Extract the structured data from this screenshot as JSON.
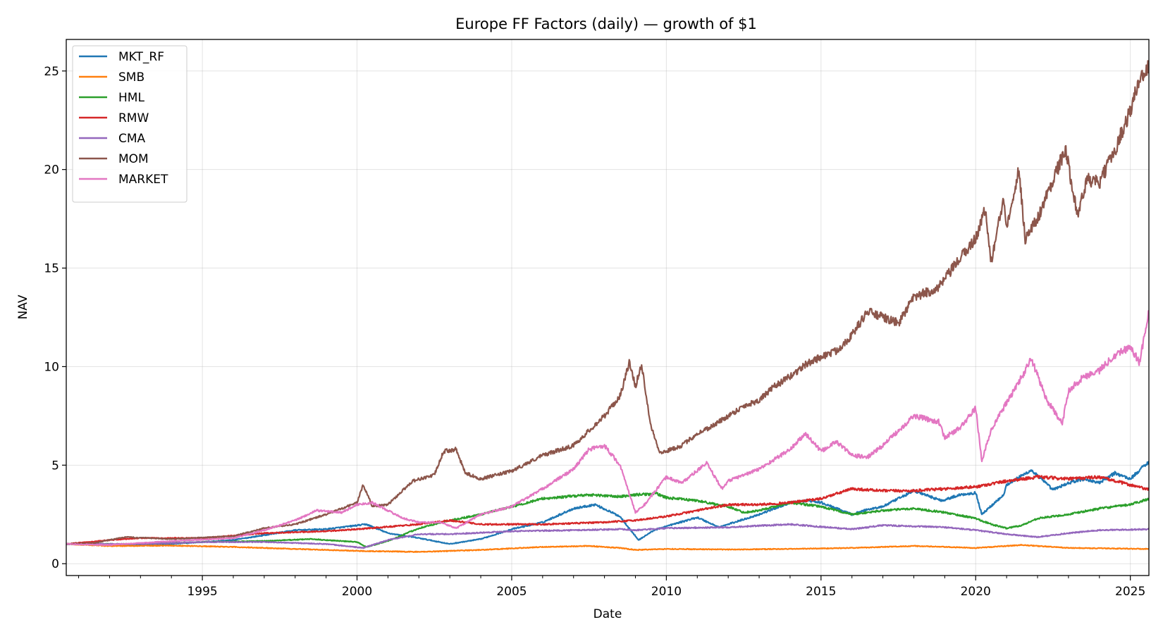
{
  "chart_data": {
    "type": "line",
    "title": "Europe FF Factors (daily) — growth of $1",
    "xlabel": "Date",
    "ylabel": "NAV",
    "xlim": [
      1990.6,
      2025.6
    ],
    "ylim": [
      -0.6,
      26.6
    ],
    "x_ticks": [
      "1995",
      "2000",
      "2005",
      "2010",
      "2015",
      "2020",
      "2025"
    ],
    "y_ticks": [
      "0",
      "5",
      "10",
      "15",
      "20",
      "25"
    ],
    "grid": true,
    "legend_position": "top-left",
    "series": [
      {
        "name": "MKT_RF",
        "color": "#1f77b4",
        "points": [
          [
            1990.6,
            1.0
          ],
          [
            1992,
            0.95
          ],
          [
            1994,
            1.0
          ],
          [
            1996,
            1.2
          ],
          [
            1998,
            1.7
          ],
          [
            1999,
            1.75
          ],
          [
            2000.3,
            2.0
          ],
          [
            2001,
            1.55
          ],
          [
            2002,
            1.3
          ],
          [
            2003,
            1.0
          ],
          [
            2004,
            1.25
          ],
          [
            2005,
            1.75
          ],
          [
            2006,
            2.1
          ],
          [
            2007,
            2.8
          ],
          [
            2007.7,
            3.0
          ],
          [
            2008.5,
            2.4
          ],
          [
            2009.1,
            1.2
          ],
          [
            2009.6,
            1.7
          ],
          [
            2010,
            1.9
          ],
          [
            2011,
            2.35
          ],
          [
            2011.7,
            1.85
          ],
          [
            2012,
            2.0
          ],
          [
            2013,
            2.5
          ],
          [
            2014,
            3.1
          ],
          [
            2014.6,
            3.2
          ],
          [
            2015,
            3.1
          ],
          [
            2015.5,
            2.8
          ],
          [
            2016,
            2.5
          ],
          [
            2016.5,
            2.75
          ],
          [
            2017,
            2.9
          ],
          [
            2018,
            3.7
          ],
          [
            2018.9,
            3.2
          ],
          [
            2019.5,
            3.5
          ],
          [
            2020,
            3.6
          ],
          [
            2020.2,
            2.5
          ],
          [
            2020.9,
            3.5
          ],
          [
            2021,
            4.0
          ],
          [
            2021.8,
            4.75
          ],
          [
            2022.5,
            3.75
          ],
          [
            2023,
            4.1
          ],
          [
            2023.5,
            4.3
          ],
          [
            2024,
            4.1
          ],
          [
            2024.5,
            4.6
          ],
          [
            2025,
            4.3
          ],
          [
            2025.6,
            5.2
          ]
        ]
      },
      {
        "name": "SMB",
        "color": "#ff7f0e",
        "points": [
          [
            1990.6,
            1.0
          ],
          [
            1992,
            0.9
          ],
          [
            1994,
            0.92
          ],
          [
            1996,
            0.85
          ],
          [
            1998,
            0.75
          ],
          [
            2000,
            0.65
          ],
          [
            2002,
            0.6
          ],
          [
            2004,
            0.7
          ],
          [
            2006,
            0.85
          ],
          [
            2007.5,
            0.9
          ],
          [
            2008.5,
            0.8
          ],
          [
            2009,
            0.7
          ],
          [
            2010,
            0.75
          ],
          [
            2012,
            0.72
          ],
          [
            2014,
            0.75
          ],
          [
            2016,
            0.8
          ],
          [
            2018,
            0.9
          ],
          [
            2020,
            0.8
          ],
          [
            2021.5,
            0.95
          ],
          [
            2023,
            0.8
          ],
          [
            2025.6,
            0.75
          ]
        ]
      },
      {
        "name": "HML",
        "color": "#2ca02c",
        "points": [
          [
            1990.6,
            1.0
          ],
          [
            1993,
            1.0
          ],
          [
            1995,
            1.1
          ],
          [
            1997,
            1.15
          ],
          [
            1998.5,
            1.25
          ],
          [
            2000,
            1.1
          ],
          [
            2000.3,
            0.85
          ],
          [
            2001,
            1.15
          ],
          [
            2002,
            1.8
          ],
          [
            2003,
            2.2
          ],
          [
            2004,
            2.5
          ],
          [
            2005,
            2.9
          ],
          [
            2006,
            3.3
          ],
          [
            2007.5,
            3.5
          ],
          [
            2008.5,
            3.4
          ],
          [
            2009,
            3.5
          ],
          [
            2009.7,
            3.55
          ],
          [
            2010,
            3.35
          ],
          [
            2011,
            3.2
          ],
          [
            2012,
            2.9
          ],
          [
            2012.5,
            2.6
          ],
          [
            2013,
            2.7
          ],
          [
            2014,
            3.1
          ],
          [
            2015,
            2.9
          ],
          [
            2016,
            2.5
          ],
          [
            2017,
            2.7
          ],
          [
            2018,
            2.8
          ],
          [
            2019,
            2.6
          ],
          [
            2020,
            2.3
          ],
          [
            2020.5,
            2.0
          ],
          [
            2021,
            1.8
          ],
          [
            2021.5,
            1.95
          ],
          [
            2022,
            2.3
          ],
          [
            2023,
            2.5
          ],
          [
            2024,
            2.8
          ],
          [
            2025,
            3.0
          ],
          [
            2025.6,
            3.3
          ]
        ]
      },
      {
        "name": "RMW",
        "color": "#d62728",
        "points": [
          [
            1990.6,
            1.0
          ],
          [
            1992,
            1.2
          ],
          [
            1993,
            1.3
          ],
          [
            1995,
            1.3
          ],
          [
            1997,
            1.55
          ],
          [
            1999,
            1.65
          ],
          [
            2000,
            1.75
          ],
          [
            2002,
            2.0
          ],
          [
            2003,
            2.2
          ],
          [
            2004,
            2.0
          ],
          [
            2006,
            2.0
          ],
          [
            2008,
            2.1
          ],
          [
            2009,
            2.2
          ],
          [
            2010,
            2.4
          ],
          [
            2011,
            2.7
          ],
          [
            2012,
            3.0
          ],
          [
            2013,
            3.0
          ],
          [
            2014,
            3.1
          ],
          [
            2015,
            3.3
          ],
          [
            2016,
            3.8
          ],
          [
            2017,
            3.7
          ],
          [
            2018,
            3.7
          ],
          [
            2019,
            3.8
          ],
          [
            2020,
            3.9
          ],
          [
            2021,
            4.2
          ],
          [
            2022,
            4.4
          ],
          [
            2023,
            4.3
          ],
          [
            2024,
            4.4
          ],
          [
            2025,
            4.0
          ],
          [
            2025.6,
            3.75
          ]
        ]
      },
      {
        "name": "CMA",
        "color": "#9467bd",
        "points": [
          [
            1990.6,
            1.0
          ],
          [
            1993,
            1.0
          ],
          [
            1995,
            1.1
          ],
          [
            1997,
            1.1
          ],
          [
            1999,
            1.0
          ],
          [
            2000.2,
            0.8
          ],
          [
            2001,
            1.2
          ],
          [
            2002,
            1.5
          ],
          [
            2003,
            1.5
          ],
          [
            2005,
            1.65
          ],
          [
            2007,
            1.7
          ],
          [
            2008.5,
            1.75
          ],
          [
            2009,
            1.7
          ],
          [
            2010,
            1.8
          ],
          [
            2012,
            1.85
          ],
          [
            2014,
            2.0
          ],
          [
            2016,
            1.75
          ],
          [
            2017,
            1.95
          ],
          [
            2019,
            1.85
          ],
          [
            2020,
            1.7
          ],
          [
            2021,
            1.5
          ],
          [
            2022,
            1.35
          ],
          [
            2023,
            1.55
          ],
          [
            2024,
            1.7
          ],
          [
            2025.6,
            1.75
          ]
        ]
      },
      {
        "name": "MOM",
        "color": "#8c564b",
        "points": [
          [
            1990.6,
            1.0
          ],
          [
            1991.5,
            1.05
          ],
          [
            1992.5,
            1.35
          ],
          [
            1994,
            1.25
          ],
          [
            1996,
            1.4
          ],
          [
            1997,
            1.8
          ],
          [
            1998,
            2.0
          ],
          [
            1999,
            2.5
          ],
          [
            2000,
            3.1
          ],
          [
            2000.2,
            4.0
          ],
          [
            2000.5,
            2.9
          ],
          [
            2001,
            3.0
          ],
          [
            2001.8,
            4.2
          ],
          [
            2002.5,
            4.5
          ],
          [
            2002.8,
            5.7
          ],
          [
            2003.2,
            5.8
          ],
          [
            2003.5,
            4.6
          ],
          [
            2004,
            4.3
          ],
          [
            2005,
            4.7
          ],
          [
            2006,
            5.5
          ],
          [
            2007,
            6.0
          ],
          [
            2008,
            7.5
          ],
          [
            2008.5,
            8.5
          ],
          [
            2008.8,
            10.2
          ],
          [
            2009,
            9.0
          ],
          [
            2009.2,
            10.1
          ],
          [
            2009.5,
            7.0
          ],
          [
            2009.8,
            5.6
          ],
          [
            2010.5,
            6.0
          ],
          [
            2011,
            6.6
          ],
          [
            2011.5,
            7.0
          ],
          [
            2012,
            7.5
          ],
          [
            2012.5,
            8.0
          ],
          [
            2013,
            8.3
          ],
          [
            2013.5,
            9.0
          ],
          [
            2014,
            9.5
          ],
          [
            2014.5,
            10.1
          ],
          [
            2015,
            10.5
          ],
          [
            2015.5,
            10.8
          ],
          [
            2016,
            11.6
          ],
          [
            2016.5,
            12.8
          ],
          [
            2017,
            12.5
          ],
          [
            2017.5,
            12.2
          ],
          [
            2018,
            13.5
          ],
          [
            2018.8,
            14.0
          ],
          [
            2019.5,
            15.5
          ],
          [
            2020,
            16.5
          ],
          [
            2020.3,
            18.0
          ],
          [
            2020.5,
            15.3
          ],
          [
            2020.9,
            18.5
          ],
          [
            2021,
            17.2
          ],
          [
            2021.4,
            20.0
          ],
          [
            2021.6,
            16.5
          ],
          [
            2022,
            17.5
          ],
          [
            2022.5,
            19.5
          ],
          [
            2022.9,
            21.0
          ],
          [
            2023.3,
            17.7
          ],
          [
            2023.6,
            19.5
          ],
          [
            2024,
            19.3
          ],
          [
            2024.5,
            21.0
          ],
          [
            2025,
            23.0
          ],
          [
            2025.3,
            24.6
          ],
          [
            2025.6,
            25.3
          ]
        ]
      },
      {
        "name": "MARKET",
        "color": "#e377c2",
        "points": [
          [
            1990.6,
            1.0
          ],
          [
            1992,
            0.95
          ],
          [
            1994,
            1.15
          ],
          [
            1996,
            1.3
          ],
          [
            1997,
            1.7
          ],
          [
            1998,
            2.2
          ],
          [
            1998.7,
            2.7
          ],
          [
            1999.5,
            2.6
          ],
          [
            2000,
            3.0
          ],
          [
            2000.5,
            3.1
          ],
          [
            2001,
            2.7
          ],
          [
            2001.5,
            2.3
          ],
          [
            2002,
            2.1
          ],
          [
            2002.7,
            2.1
          ],
          [
            2003.2,
            1.8
          ],
          [
            2004,
            2.5
          ],
          [
            2005,
            2.9
          ],
          [
            2006,
            3.8
          ],
          [
            2007,
            4.8
          ],
          [
            2007.5,
            5.8
          ],
          [
            2008,
            6.0
          ],
          [
            2008.5,
            5.0
          ],
          [
            2009,
            2.6
          ],
          [
            2009.3,
            3.0
          ],
          [
            2010,
            4.4
          ],
          [
            2010.5,
            4.1
          ],
          [
            2011.3,
            5.1
          ],
          [
            2011.8,
            3.8
          ],
          [
            2012,
            4.2
          ],
          [
            2013,
            4.8
          ],
          [
            2014,
            5.8
          ],
          [
            2014.5,
            6.6
          ],
          [
            2015,
            5.7
          ],
          [
            2015.5,
            6.2
          ],
          [
            2016,
            5.5
          ],
          [
            2016.5,
            5.4
          ],
          [
            2017,
            6.0
          ],
          [
            2018,
            7.5
          ],
          [
            2018.8,
            7.2
          ],
          [
            2019,
            6.4
          ],
          [
            2019.5,
            6.9
          ],
          [
            2020,
            7.9
          ],
          [
            2020.2,
            5.2
          ],
          [
            2020.5,
            6.8
          ],
          [
            2020.9,
            7.9
          ],
          [
            2021.5,
            9.5
          ],
          [
            2021.8,
            10.4
          ],
          [
            2022.3,
            8.3
          ],
          [
            2022.8,
            7.1
          ],
          [
            2023,
            8.8
          ],
          [
            2023.5,
            9.5
          ],
          [
            2024,
            9.8
          ],
          [
            2024.5,
            10.6
          ],
          [
            2025,
            11.0
          ],
          [
            2025.3,
            10.2
          ],
          [
            2025.6,
            12.8
          ]
        ]
      }
    ]
  }
}
